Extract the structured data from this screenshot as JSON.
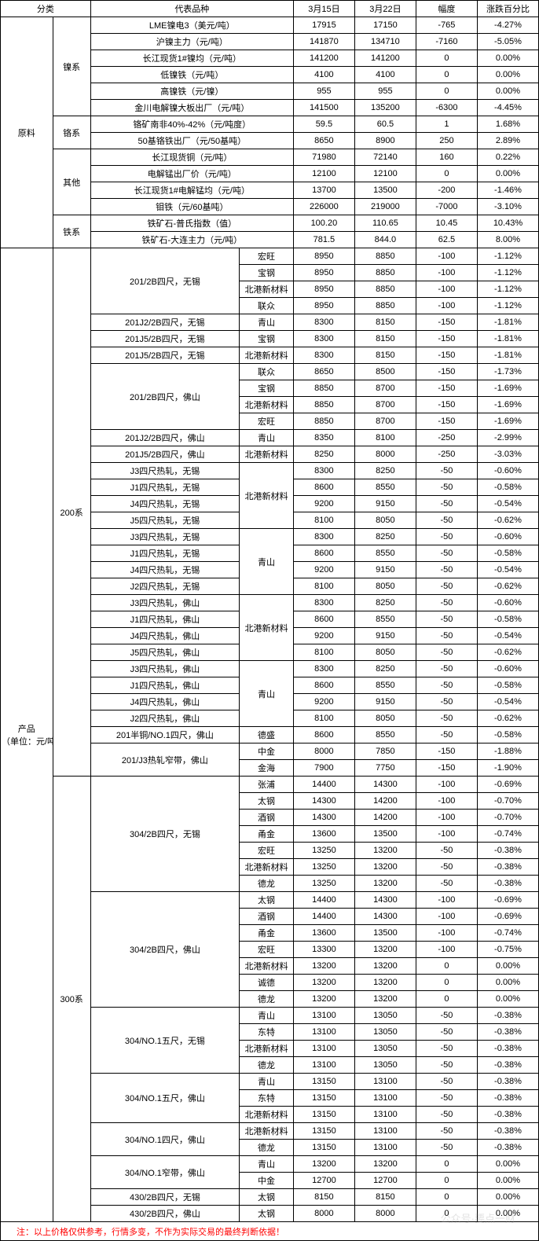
{
  "columns": {
    "c1": "分类",
    "c2": "代表品种",
    "c3": "3月15日",
    "c4": "3月22日",
    "c5": "幅度",
    "c6": "涨跌百分比"
  },
  "footnote": "注：以上价格仅供参考，行情多变，不作为实际交易的最终判断依据！",
  "sec_raw": "原料",
  "sec_prod": "产品\n（单位：元/吨）",
  "grp_ni": "镍系",
  "grp_cr": "铬系",
  "grp_other": "其他",
  "grp_fe": "铁系",
  "grp_200": "200系",
  "grp_300": "300系",
  "raw_rows": [
    {
      "name": "LME镍电3（美元/吨）",
      "v1": "17915",
      "v2": "17150",
      "d": "-765",
      "p": "-4.27%"
    },
    {
      "name": "沪镍主力（元/吨）",
      "v1": "141870",
      "v2": "134710",
      "d": "-7160",
      "p": "-5.05%"
    },
    {
      "name": "长江现货1#镍均（元/吨）",
      "v1": "141200",
      "v2": "141200",
      "d": "0",
      "p": "0.00%"
    },
    {
      "name": "低镍铁（元/吨）",
      "v1": "4100",
      "v2": "4100",
      "d": "0",
      "p": "0.00%"
    },
    {
      "name": "高镍铁（元/镍）",
      "v1": "955",
      "v2": "955",
      "d": "0",
      "p": "0.00%"
    },
    {
      "name": "金川电解镍大板出厂（元/吨）",
      "v1": "141500",
      "v2": "135200",
      "d": "-6300",
      "p": "-4.45%"
    },
    {
      "name": "铬矿南非40%-42%（元/吨度）",
      "v1": "59.5",
      "v2": "60.5",
      "d": "1",
      "p": "1.68%"
    },
    {
      "name": "50基铬铁出厂（元/50基吨）",
      "v1": "8650",
      "v2": "8900",
      "d": "250",
      "p": "2.89%"
    },
    {
      "name": "长江现货铜（元/吨）",
      "v1": "71980",
      "v2": "72140",
      "d": "160",
      "p": "0.22%"
    },
    {
      "name": "电解锰出厂价（元/吨）",
      "v1": "12100",
      "v2": "12100",
      "d": "0",
      "p": "0.00%"
    },
    {
      "name": "长江现货1#电解锰均（元/吨）",
      "v1": "13700",
      "v2": "13500",
      "d": "-200",
      "p": "-1.46%"
    },
    {
      "name": "钼铁（元/60基吨）",
      "v1": "226000",
      "v2": "219000",
      "d": "-7000",
      "p": "-3.10%"
    },
    {
      "name": "铁矿石-普氏指数（值）",
      "v1": "100.20",
      "v2": "110.65",
      "d": "10.45",
      "p": "10.43%"
    },
    {
      "name": "铁矿石-大连主力（元/吨）",
      "v1": "781.5",
      "v2": "844.0",
      "d": "62.5",
      "p": "8.00%"
    }
  ],
  "s200": [
    {
      "spec": "201/2B四尺，无锡",
      "specRows": 4,
      "brand": "宏旺",
      "v1": "8950",
      "v2": "8850",
      "d": "-100",
      "p": "-1.12%"
    },
    {
      "brand": "宝钢",
      "v1": "8950",
      "v2": "8850",
      "d": "-100",
      "p": "-1.12%"
    },
    {
      "brand": "北港新材料",
      "v1": "8950",
      "v2": "8850",
      "d": "-100",
      "p": "-1.12%"
    },
    {
      "brand": "联众",
      "v1": "8950",
      "v2": "8850",
      "d": "-100",
      "p": "-1.12%"
    },
    {
      "spec": "201J2/2B四尺，无锡",
      "specRows": 1,
      "brand": "青山",
      "v1": "8300",
      "v2": "8150",
      "d": "-150",
      "p": "-1.81%"
    },
    {
      "spec": "201J5/2B四尺，无锡",
      "specRows": 1,
      "brand": "宝钢",
      "v1": "8300",
      "v2": "8150",
      "d": "-150",
      "p": "-1.81%"
    },
    {
      "spec": "201J5/2B四尺，无锡",
      "specRows": 1,
      "brand": "北港新材料",
      "v1": "8300",
      "v2": "8150",
      "d": "-150",
      "p": "-1.81%"
    },
    {
      "spec": "201/2B四尺，佛山",
      "specRows": 4,
      "brand": "联众",
      "v1": "8650",
      "v2": "8500",
      "d": "-150",
      "p": "-1.73%"
    },
    {
      "brand": "宝钢",
      "v1": "8850",
      "v2": "8700",
      "d": "-150",
      "p": "-1.69%"
    },
    {
      "brand": "北港新材料",
      "v1": "8850",
      "v2": "8700",
      "d": "-150",
      "p": "-1.69%"
    },
    {
      "brand": "宏旺",
      "v1": "8850",
      "v2": "8700",
      "d": "-150",
      "p": "-1.69%"
    },
    {
      "spec": "201J2/2B四尺，佛山",
      "specRows": 1,
      "brand": "青山",
      "v1": "8350",
      "v2": "8100",
      "d": "-250",
      "p": "-2.99%"
    },
    {
      "spec": "201J5/2B四尺，佛山",
      "specRows": 1,
      "brand": "北港新材料",
      "v1": "8250",
      "v2": "8000",
      "d": "-250",
      "p": "-3.03%"
    },
    {
      "spec": "J3四尺热轧，无锡",
      "specRows": 1,
      "brand": "北港新材料",
      "brandRows": 4,
      "v1": "8300",
      "v2": "8250",
      "d": "-50",
      "p": "-0.60%"
    },
    {
      "spec": "J1四尺热轧，无锡",
      "specRows": 1,
      "v1": "8600",
      "v2": "8550",
      "d": "-50",
      "p": "-0.58%"
    },
    {
      "spec": "J4四尺热轧，无锡",
      "specRows": 1,
      "v1": "9200",
      "v2": "9150",
      "d": "-50",
      "p": "-0.54%"
    },
    {
      "spec": "J5四尺热轧，无锡",
      "specRows": 1,
      "v1": "8100",
      "v2": "8050",
      "d": "-50",
      "p": "-0.62%"
    },
    {
      "spec": "J3四尺热轧，无锡",
      "specRows": 1,
      "brand": "青山",
      "brandRows": 4,
      "v1": "8300",
      "v2": "8250",
      "d": "-50",
      "p": "-0.60%"
    },
    {
      "spec": "J1四尺热轧，无锡",
      "specRows": 1,
      "v1": "8600",
      "v2": "8550",
      "d": "-50",
      "p": "-0.58%"
    },
    {
      "spec": "J4四尺热轧，无锡",
      "specRows": 1,
      "v1": "9200",
      "v2": "9150",
      "d": "-50",
      "p": "-0.54%"
    },
    {
      "spec": "J2四尺热轧，无锡",
      "specRows": 1,
      "v1": "8100",
      "v2": "8050",
      "d": "-50",
      "p": "-0.62%"
    },
    {
      "spec": "J3四尺热轧，佛山",
      "specRows": 1,
      "brand": "北港新材料",
      "brandRows": 4,
      "v1": "8300",
      "v2": "8250",
      "d": "-50",
      "p": "-0.60%"
    },
    {
      "spec": "J1四尺热轧，佛山",
      "specRows": 1,
      "v1": "8600",
      "v2": "8550",
      "d": "-50",
      "p": "-0.58%"
    },
    {
      "spec": "J4四尺热轧，佛山",
      "specRows": 1,
      "v1": "9200",
      "v2": "9150",
      "d": "-50",
      "p": "-0.54%"
    },
    {
      "spec": "J5四尺热轧，佛山",
      "specRows": 1,
      "v1": "8100",
      "v2": "8050",
      "d": "-50",
      "p": "-0.62%"
    },
    {
      "spec": "J3四尺热轧，佛山",
      "specRows": 1,
      "brand": "青山",
      "brandRows": 4,
      "v1": "8300",
      "v2": "8250",
      "d": "-50",
      "p": "-0.60%"
    },
    {
      "spec": "J1四尺热轧，佛山",
      "specRows": 1,
      "v1": "8600",
      "v2": "8550",
      "d": "-50",
      "p": "-0.58%"
    },
    {
      "spec": "J4四尺热轧，佛山",
      "specRows": 1,
      "v1": "9200",
      "v2": "9150",
      "d": "-50",
      "p": "-0.54%"
    },
    {
      "spec": "J2四尺热轧，佛山",
      "specRows": 1,
      "v1": "8100",
      "v2": "8050",
      "d": "-50",
      "p": "-0.62%"
    },
    {
      "spec": "201半铜/NO.1四尺，佛山",
      "specRows": 1,
      "brand": "德盛",
      "v1": "8600",
      "v2": "8550",
      "d": "-50",
      "p": "-0.58%"
    },
    {
      "spec": "201/J3热轧窄带，佛山",
      "specRows": 2,
      "brand": "中金",
      "v1": "8000",
      "v2": "7850",
      "d": "-150",
      "p": "-1.88%"
    },
    {
      "brand": "金海",
      "v1": "7900",
      "v2": "7750",
      "d": "-150",
      "p": "-1.90%"
    }
  ],
  "s300": [
    {
      "spec": "304/2B四尺，无锡",
      "specRows": 7,
      "brand": "张浦",
      "v1": "14400",
      "v2": "14300",
      "d": "-100",
      "p": "-0.69%"
    },
    {
      "brand": "太钢",
      "v1": "14300",
      "v2": "14200",
      "d": "-100",
      "p": "-0.70%"
    },
    {
      "brand": "酒钢",
      "v1": "14300",
      "v2": "14200",
      "d": "-100",
      "p": "-0.70%"
    },
    {
      "brand": "甬金",
      "v1": "13600",
      "v2": "13500",
      "d": "-100",
      "p": "-0.74%"
    },
    {
      "brand": "宏旺",
      "v1": "13250",
      "v2": "13200",
      "d": "-50",
      "p": "-0.38%"
    },
    {
      "brand": "北港新材料",
      "v1": "13250",
      "v2": "13200",
      "d": "-50",
      "p": "-0.38%"
    },
    {
      "brand": "德龙",
      "v1": "13250",
      "v2": "13200",
      "d": "-50",
      "p": "-0.38%"
    },
    {
      "spec": "304/2B四尺，佛山",
      "specRows": 7,
      "brand": "太钢",
      "v1": "14400",
      "v2": "14300",
      "d": "-100",
      "p": "-0.69%"
    },
    {
      "brand": "酒钢",
      "v1": "14400",
      "v2": "14300",
      "d": "-100",
      "p": "-0.69%"
    },
    {
      "brand": "甬金",
      "v1": "13600",
      "v2": "13500",
      "d": "-100",
      "p": "-0.74%"
    },
    {
      "brand": "宏旺",
      "v1": "13300",
      "v2": "13200",
      "d": "-100",
      "p": "-0.75%"
    },
    {
      "brand": "北港新材料",
      "v1": "13200",
      "v2": "13200",
      "d": "0",
      "p": "0.00%"
    },
    {
      "brand": "诚德",
      "v1": "13200",
      "v2": "13200",
      "d": "0",
      "p": "0.00%"
    },
    {
      "brand": "德龙",
      "v1": "13200",
      "v2": "13200",
      "d": "0",
      "p": "0.00%"
    },
    {
      "spec": "304/NO.1五尺，无锡",
      "specRows": 4,
      "brand": "青山",
      "v1": "13100",
      "v2": "13050",
      "d": "-50",
      "p": "-0.38%"
    },
    {
      "brand": "东特",
      "v1": "13100",
      "v2": "13050",
      "d": "-50",
      "p": "-0.38%"
    },
    {
      "brand": "北港新材料",
      "v1": "13100",
      "v2": "13050",
      "d": "-50",
      "p": "-0.38%"
    },
    {
      "brand": "德龙",
      "v1": "13100",
      "v2": "13050",
      "d": "-50",
      "p": "-0.38%"
    },
    {
      "spec": "304/NO.1五尺，佛山",
      "specRows": 3,
      "brand": "青山",
      "v1": "13150",
      "v2": "13100",
      "d": "-50",
      "p": "-0.38%"
    },
    {
      "brand": "东特",
      "v1": "13150",
      "v2": "13100",
      "d": "-50",
      "p": "-0.38%"
    },
    {
      "brand": "北港新材料",
      "v1": "13150",
      "v2": "13100",
      "d": "-50",
      "p": "-0.38%"
    },
    {
      "spec": "304/NO.1四尺，佛山",
      "specRows": 2,
      "brand": "北港新材料",
      "v1": "13150",
      "v2": "13100",
      "d": "-50",
      "p": "-0.38%"
    },
    {
      "brand": "德龙",
      "v1": "13150",
      "v2": "13100",
      "d": "-50",
      "p": "-0.38%"
    },
    {
      "spec": "304/NO.1窄带，佛山",
      "specRows": 2,
      "brand": "青山",
      "v1": "13200",
      "v2": "13200",
      "d": "0",
      "p": "0.00%"
    },
    {
      "brand": "中金",
      "v1": "12700",
      "v2": "12700",
      "d": "0",
      "p": "0.00%"
    },
    {
      "spec": "430/2B四尺，无锡",
      "specRows": 1,
      "brand": "太钢",
      "v1": "8150",
      "v2": "8150",
      "d": "0",
      "p": "0.00%"
    },
    {
      "spec": "430/2B四尺，佛山",
      "specRows": 1,
      "brand": "太钢",
      "v1": "8000",
      "v2": "8000",
      "d": "0",
      "p": "0.00%"
    }
  ]
}
